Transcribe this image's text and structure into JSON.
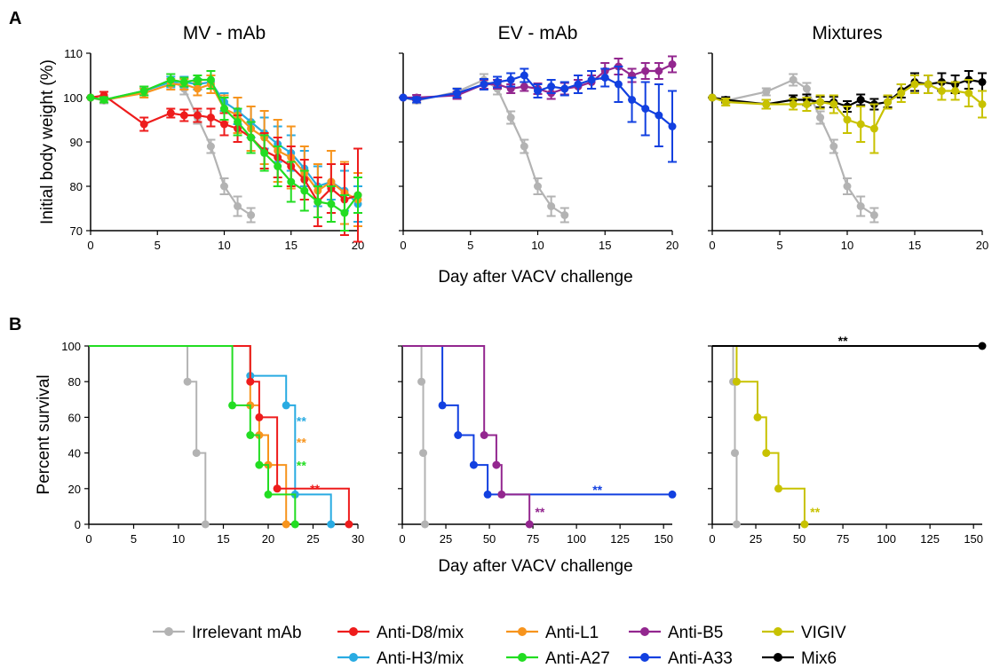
{
  "figure": {
    "panel_A_label": "A",
    "panel_B_label": "B",
    "xlabel": "Day after VACV challenge",
    "ylabel_A": "Initial body weight (%)",
    "ylabel_B": "Percent survival"
  },
  "legend": [
    {
      "name": "Irrelevant mAb",
      "color": "#b3b3b3"
    },
    {
      "name": "Anti-D8/mix",
      "color": "#ee1c1c"
    },
    {
      "name": "Anti-L1",
      "color": "#f7941d"
    },
    {
      "name": "Anti-B5",
      "color": "#93278f"
    },
    {
      "name": "VIGIV",
      "color": "#c8c200"
    },
    {
      "name": "Anti-H3/mix",
      "color": "#29abe2"
    },
    {
      "name": "Anti-A27",
      "color": "#22dd22"
    },
    {
      "name": "Anti-A33",
      "color": "#1240e0"
    },
    {
      "name": "Mix6",
      "color": "#000000"
    }
  ],
  "chart_data": [
    {
      "type": "line",
      "panel": "A",
      "title": "MV - mAb",
      "ylim": [
        70,
        110
      ],
      "xlim": [
        0,
        20
      ],
      "yticks": [
        70,
        80,
        90,
        100,
        110
      ],
      "xticks": [
        0,
        5,
        10,
        15,
        20
      ],
      "series": [
        {
          "name": "Irrelevant mAb",
          "color": "#b3b3b3",
          "x": [
            0,
            1,
            4,
            6,
            7,
            8,
            9,
            10,
            11,
            12
          ],
          "y": [
            100,
            99.3,
            101.3,
            104,
            102,
            95.5,
            89,
            80,
            75.5,
            73.5
          ],
          "err": [
            0,
            0.6,
            0.8,
            1.3,
            1.3,
            1.4,
            1.5,
            1.8,
            2.2,
            1.6
          ]
        },
        {
          "name": "Anti-H3/mix",
          "color": "#29abe2",
          "x": [
            0,
            1,
            4,
            6,
            7,
            8,
            9,
            10,
            11,
            12,
            13,
            14,
            15,
            16,
            17,
            18,
            19,
            20
          ],
          "y": [
            100,
            99.5,
            101.5,
            103.5,
            103.5,
            103,
            103.5,
            99,
            97,
            94.5,
            92,
            89.5,
            87.5,
            84,
            80,
            81,
            79,
            76
          ],
          "err": [
            0,
            0.6,
            1,
            1.2,
            1.2,
            1.2,
            1.5,
            2,
            3,
            3.5,
            3.5,
            4,
            4,
            4,
            4.5,
            4,
            4.5,
            4
          ]
        },
        {
          "name": "Anti-L1",
          "color": "#f7941d",
          "x": [
            0,
            1,
            4,
            6,
            7,
            8,
            9,
            10,
            11,
            12,
            13,
            14,
            15,
            16,
            17,
            18,
            19,
            20
          ],
          "y": [
            100,
            99.5,
            101,
            103,
            103,
            102,
            103,
            97.5,
            96,
            93,
            91,
            88,
            86.5,
            83,
            79,
            81,
            78.5,
            77
          ],
          "err": [
            0,
            0.6,
            1,
            1.2,
            1.2,
            1.5,
            2,
            3,
            4,
            5,
            6,
            7,
            7,
            6,
            6,
            7,
            7,
            6
          ]
        },
        {
          "name": "Anti-D8/mix",
          "color": "#ee1c1c",
          "x": [
            0,
            1,
            4,
            6,
            7,
            8,
            9,
            10,
            11,
            12,
            13,
            14,
            15,
            16,
            17,
            18,
            19,
            20
          ],
          "y": [
            100,
            100.5,
            94,
            96.5,
            96,
            96,
            95.5,
            94,
            93,
            91,
            88,
            86.5,
            84.5,
            81.5,
            76.5,
            79.5,
            77,
            78
          ],
          "err": [
            0,
            0.8,
            1.5,
            1,
            1.3,
            1.5,
            2,
            2.5,
            3,
            3.5,
            4,
            4.5,
            4.5,
            4.5,
            5.5,
            5.5,
            8,
            10.5
          ]
        },
        {
          "name": "Anti-A27",
          "color": "#22dd22",
          "x": [
            0,
            1,
            4,
            6,
            7,
            8,
            9,
            10,
            11,
            12,
            13,
            14,
            15,
            16,
            17,
            18,
            19,
            20
          ],
          "y": [
            100,
            99.5,
            101.5,
            104,
            103.5,
            104,
            104,
            97.5,
            94.5,
            91,
            87.5,
            84.5,
            81,
            79,
            76.5,
            76,
            74,
            78
          ],
          "err": [
            0,
            0.6,
            1,
            1.3,
            1,
            1,
            2,
            2.5,
            3,
            3.5,
            4,
            4.5,
            4.5,
            4.5,
            3.5,
            4,
            4,
            4
          ]
        }
      ]
    },
    {
      "type": "line",
      "panel": "A",
      "title": "EV - mAb",
      "ylim": [
        70,
        110
      ],
      "xlim": [
        0,
        20
      ],
      "yticks": [
        70,
        80,
        90,
        100,
        110
      ],
      "xticks": [
        0,
        5,
        10,
        15,
        20
      ],
      "series": [
        {
          "name": "Irrelevant mAb",
          "color": "#b3b3b3",
          "x": [
            0,
            1,
            4,
            6,
            7,
            8,
            9,
            10,
            11,
            12
          ],
          "y": [
            100,
            99.3,
            101.3,
            104,
            102,
            95.5,
            89,
            80,
            75.5,
            73.5
          ],
          "err": [
            0,
            0.6,
            0.8,
            1.3,
            1.3,
            1.4,
            1.5,
            1.8,
            2.2,
            1.6
          ]
        },
        {
          "name": "Anti-B5",
          "color": "#93278f",
          "x": [
            0,
            1,
            4,
            6,
            7,
            8,
            9,
            10,
            11,
            12,
            13,
            14,
            15,
            16,
            17,
            18,
            19,
            20
          ],
          "y": [
            100,
            100,
            100.5,
            103,
            103,
            102,
            102.5,
            102,
            101,
            102,
            102.5,
            103.5,
            106,
            107,
            105,
            106,
            106,
            107.5
          ],
          "err": [
            0,
            0.6,
            0.8,
            1,
            1,
            1,
            1,
            1.2,
            1.3,
            1.3,
            1.5,
            1.5,
            1.8,
            1.8,
            1.5,
            1.8,
            1.8,
            1.8
          ]
        },
        {
          "name": "Anti-A33",
          "color": "#1240e0",
          "x": [
            0,
            1,
            4,
            6,
            7,
            8,
            9,
            10,
            11,
            12,
            13,
            14,
            15,
            16,
            17,
            18,
            19,
            20
          ],
          "y": [
            100,
            99.5,
            101,
            103,
            103.5,
            104,
            105,
            101.5,
            102.5,
            102,
            103,
            104,
            104.5,
            103,
            99.5,
            97.5,
            96,
            93.5
          ],
          "err": [
            0,
            0.6,
            1,
            1.2,
            1.2,
            1.5,
            1.5,
            1.5,
            1.5,
            1.5,
            2,
            2,
            2,
            4,
            5,
            6,
            7,
            8
          ]
        }
      ]
    },
    {
      "type": "line",
      "panel": "A",
      "title": "Mixtures",
      "ylim": [
        70,
        110
      ],
      "xlim": [
        0,
        20
      ],
      "yticks": [
        70,
        80,
        90,
        100,
        110
      ],
      "xticks": [
        0,
        5,
        10,
        15,
        20
      ],
      "series": [
        {
          "name": "Irrelevant mAb",
          "color": "#b3b3b3",
          "x": [
            0,
            1,
            4,
            6,
            7,
            8,
            9,
            10,
            11,
            12
          ],
          "y": [
            100,
            99.3,
            101.3,
            104,
            102,
            95.5,
            89,
            80,
            75.5,
            73.5
          ],
          "err": [
            0,
            0.6,
            0.8,
            1.3,
            1.3,
            1.4,
            1.5,
            1.8,
            2.2,
            1.6
          ]
        },
        {
          "name": "Mix6",
          "color": "#000000",
          "x": [
            0,
            1,
            4,
            6,
            7,
            8,
            9,
            10,
            11,
            12,
            13,
            14,
            15,
            16,
            17,
            18,
            19,
            20
          ],
          "y": [
            100,
            99.5,
            98.5,
            99.5,
            99.5,
            99,
            99,
            98,
            99.5,
            98.5,
            99,
            101.5,
            103.5,
            103,
            103.5,
            103,
            104,
            103.5
          ],
          "err": [
            0,
            0.6,
            1,
            1,
            1.2,
            1.2,
            1.2,
            1.2,
            1.2,
            1.2,
            1.2,
            1.5,
            2,
            2,
            2,
            2,
            2,
            2
          ]
        },
        {
          "name": "VIGIV",
          "color": "#c8c200",
          "x": [
            0,
            1,
            4,
            6,
            7,
            8,
            9,
            10,
            11,
            12,
            13,
            14,
            15,
            16,
            17,
            18,
            19,
            20
          ],
          "y": [
            100,
            99,
            98.5,
            98.5,
            98.5,
            99,
            98.5,
            95,
            94,
            93,
            99,
            101,
            103,
            103,
            101.5,
            101.5,
            101,
            98.5
          ],
          "err": [
            0,
            0.8,
            1,
            1.2,
            1.5,
            1.5,
            2,
            3,
            4,
            5.5,
            1.5,
            2,
            2,
            2,
            2,
            2,
            3,
            3
          ]
        }
      ]
    },
    {
      "type": "step",
      "panel": "B",
      "ylim": [
        0,
        100
      ],
      "xlim": [
        0,
        30
      ],
      "yticks": [
        0,
        20,
        40,
        60,
        80,
        100
      ],
      "xticks": [
        0,
        5,
        10,
        15,
        20,
        25,
        30
      ],
      "series": [
        {
          "name": "Irrelevant mAb",
          "color": "#b3b3b3",
          "steps": [
            [
              0,
              100
            ],
            [
              11,
              80
            ],
            [
              12,
              40
            ],
            [
              13,
              0
            ]
          ]
        },
        {
          "name": "Anti-H3/mix",
          "color": "#29abe2",
          "steps": [
            [
              0,
              100
            ],
            [
              18,
              83.3
            ],
            [
              22,
              66.7
            ],
            [
              23,
              16.7
            ],
            [
              27,
              0
            ]
          ]
        },
        {
          "name": "Anti-L1",
          "color": "#f7941d",
          "steps": [
            [
              0,
              100
            ],
            [
              18,
              66.7
            ],
            [
              19,
              50
            ],
            [
              20,
              33.3
            ],
            [
              22,
              0
            ]
          ]
        },
        {
          "name": "Anti-D8/mix",
          "color": "#ee1c1c",
          "steps": [
            [
              0,
              100
            ],
            [
              18,
              80
            ],
            [
              19,
              60
            ],
            [
              21,
              20
            ],
            [
              29,
              0
            ]
          ]
        },
        {
          "name": "Anti-A27",
          "color": "#22dd22",
          "steps": [
            [
              0,
              100
            ],
            [
              16,
              66.7
            ],
            [
              18,
              50
            ],
            [
              19,
              33.3
            ],
            [
              20,
              16.7
            ],
            [
              23,
              0
            ]
          ]
        }
      ],
      "annotations": [
        {
          "text": "**",
          "x": 23.7,
          "y": 58,
          "color": "#29abe2"
        },
        {
          "text": "**",
          "x": 23.7,
          "y": 46,
          "color": "#f7941d"
        },
        {
          "text": "**",
          "x": 23.7,
          "y": 33,
          "color": "#22dd22"
        },
        {
          "text": "**",
          "x": 25.2,
          "y": 20,
          "color": "#ee1c1c"
        }
      ]
    },
    {
      "type": "step",
      "panel": "B",
      "ylim": [
        0,
        100
      ],
      "xlim": [
        0,
        155
      ],
      "yticks": [
        0,
        20,
        40,
        60,
        80,
        100
      ],
      "xticks": [
        0,
        25,
        50,
        75,
        100,
        125,
        150
      ],
      "series": [
        {
          "name": "Irrelevant mAb",
          "color": "#b3b3b3",
          "steps": [
            [
              0,
              100
            ],
            [
              11,
              80
            ],
            [
              12,
              40
            ],
            [
              13,
              0
            ]
          ]
        },
        {
          "name": "Anti-A33",
          "color": "#1240e0",
          "steps": [
            [
              0,
              100
            ],
            [
              23,
              66.7
            ],
            [
              32,
              50
            ],
            [
              41,
              33.3
            ],
            [
              49,
              16.7
            ],
            [
              155,
              16.7
            ]
          ]
        },
        {
          "name": "Anti-B5",
          "color": "#93278f",
          "steps": [
            [
              0,
              100
            ],
            [
              47,
              50
            ],
            [
              54,
              33.3
            ],
            [
              57,
              16.7
            ],
            [
              73,
              0
            ]
          ]
        }
      ],
      "annotations": [
        {
          "text": "**",
          "x": 112,
          "y": 19.5,
          "color": "#1240e0"
        },
        {
          "text": "**",
          "x": 79,
          "y": 7,
          "color": "#93278f"
        }
      ]
    },
    {
      "type": "step",
      "panel": "B",
      "ylim": [
        0,
        100
      ],
      "xlim": [
        0,
        155
      ],
      "yticks": [
        0,
        20,
        40,
        60,
        80,
        100
      ],
      "xticks": [
        0,
        25,
        50,
        75,
        100,
        125,
        150
      ],
      "series": [
        {
          "name": "Irrelevant mAb",
          "color": "#b3b3b3",
          "steps": [
            [
              0,
              100
            ],
            [
              12,
              80
            ],
            [
              13,
              40
            ],
            [
              14,
              0
            ]
          ]
        },
        {
          "name": "VIGIV",
          "color": "#c8c200",
          "steps": [
            [
              0,
              100
            ],
            [
              14,
              80
            ],
            [
              26,
              60
            ],
            [
              31,
              40
            ],
            [
              38,
              20
            ],
            [
              53,
              0
            ]
          ]
        },
        {
          "name": "Mix6",
          "color": "#000000",
          "steps": [
            [
              0,
              100
            ],
            [
              155,
              100
            ]
          ]
        }
      ],
      "annotations": [
        {
          "text": "**",
          "x": 59,
          "y": 7,
          "color": "#c8c200"
        },
        {
          "text": "**",
          "x": 75,
          "y": 103,
          "color": "#000000"
        }
      ]
    }
  ]
}
